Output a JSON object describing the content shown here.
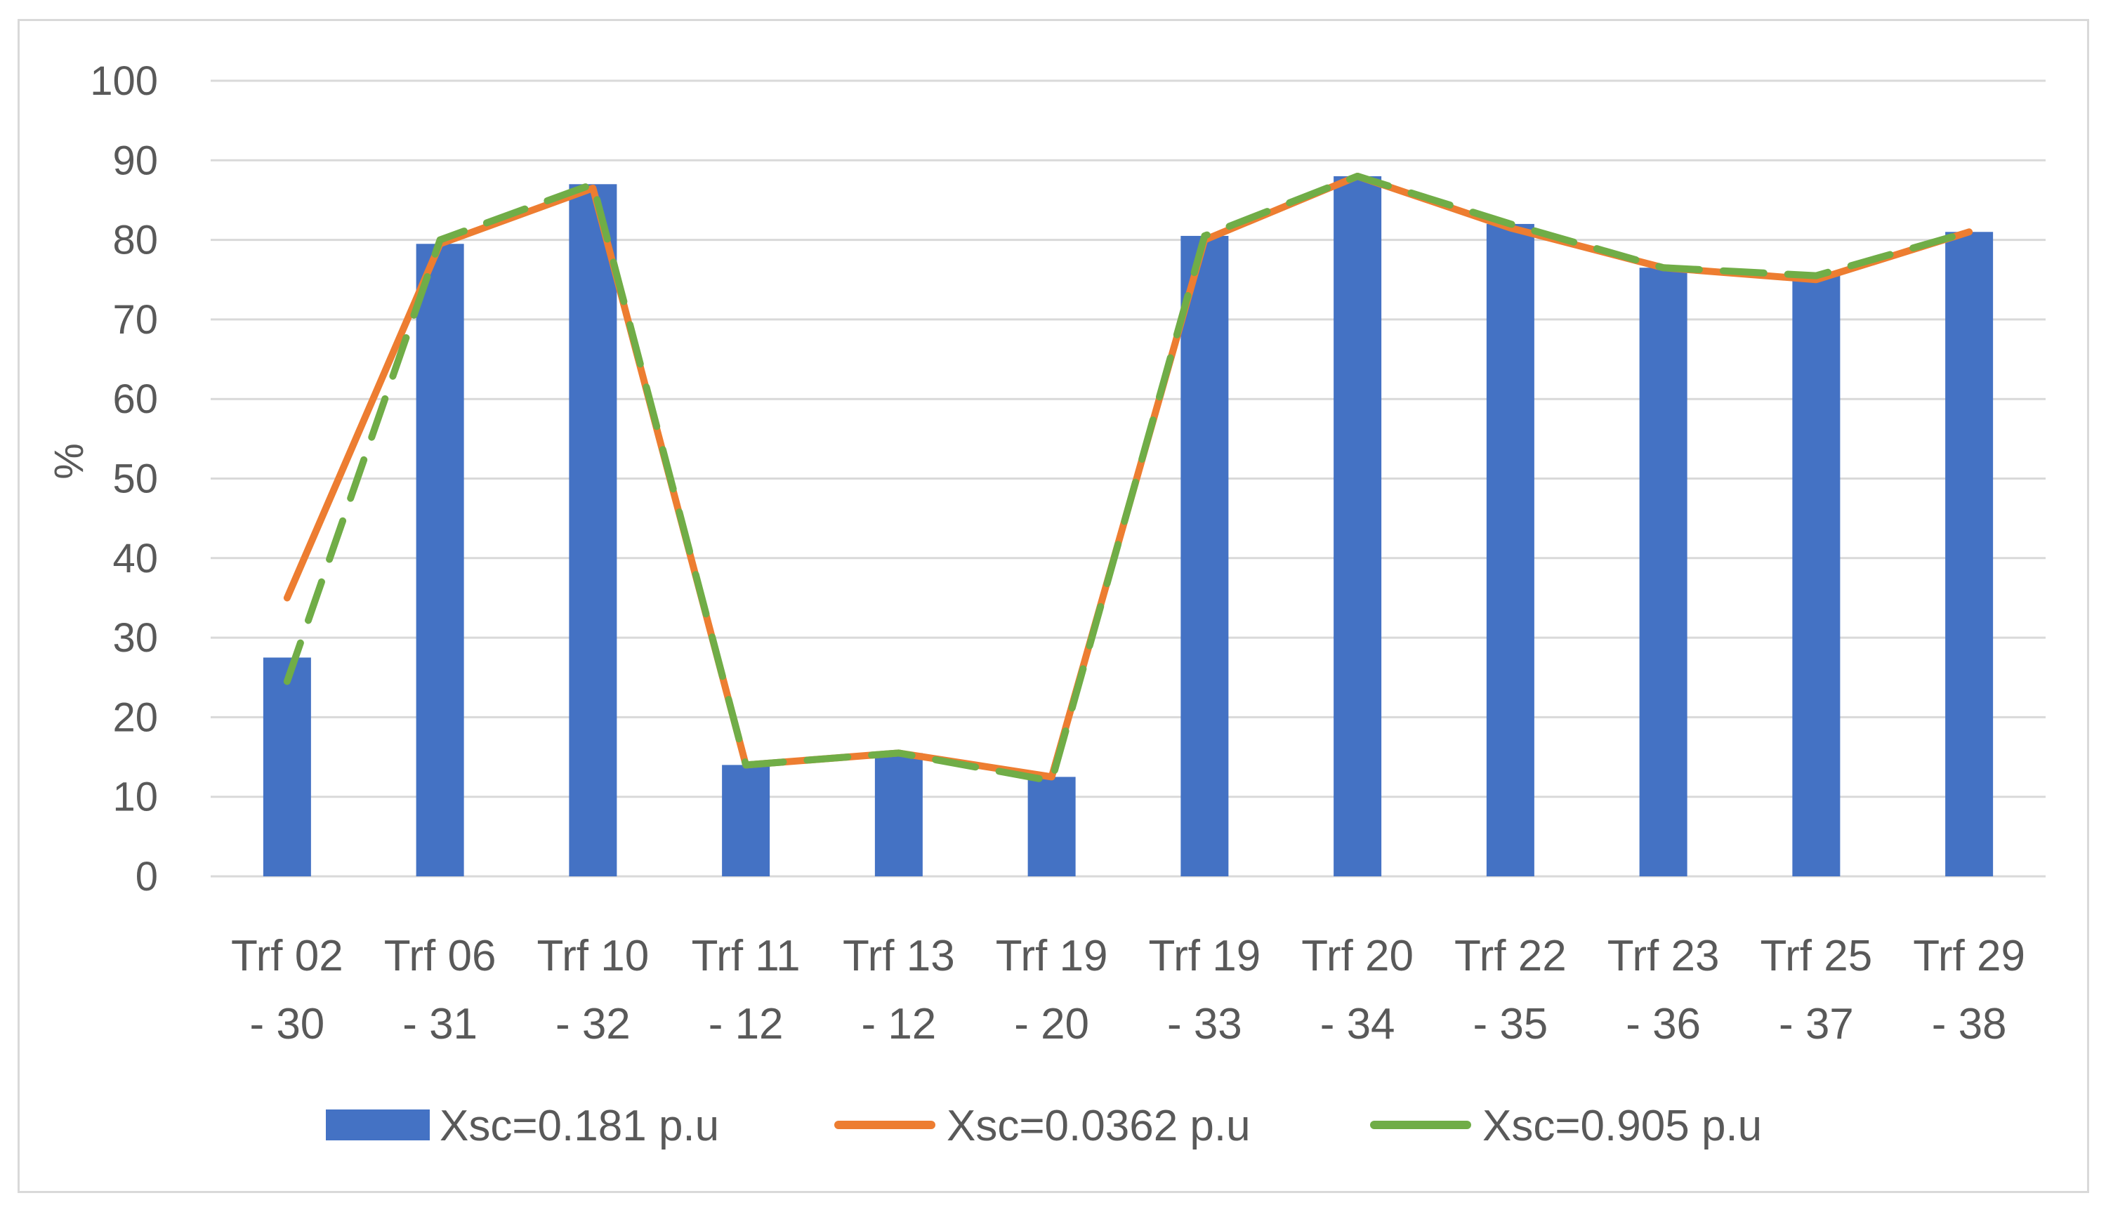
{
  "chart_data": {
    "type": "bar",
    "title": "",
    "xlabel": "",
    "ylabel": "%",
    "ylim": [
      0,
      100
    ],
    "yticks": [
      0,
      10,
      20,
      30,
      40,
      50,
      60,
      70,
      80,
      90,
      100
    ],
    "grid": true,
    "legend_position": "bottom",
    "categories": [
      [
        "Trf 02",
        "- 30"
      ],
      [
        "Trf 06",
        "- 31"
      ],
      [
        "Trf 10",
        "- 32"
      ],
      [
        "Trf 11",
        "- 12"
      ],
      [
        "Trf 13",
        "- 12"
      ],
      [
        "Trf 19",
        "- 20"
      ],
      [
        "Trf 19",
        "- 33"
      ],
      [
        "Trf 20",
        "- 34"
      ],
      [
        "Trf 22",
        "- 35"
      ],
      [
        "Trf 23",
        "- 36"
      ],
      [
        "Trf 25",
        "- 37"
      ],
      [
        "Trf 29",
        "- 38"
      ]
    ],
    "series": [
      {
        "name": "Xsc=0.181 p.u",
        "kind": "bar",
        "color": "#4472c4",
        "values": [
          27.5,
          79.5,
          87,
          14,
          15.5,
          12.5,
          80.5,
          88,
          82,
          76.5,
          75.5,
          81
        ]
      },
      {
        "name": "Xsc=0.0362 p.u",
        "kind": "line",
        "style": "solid",
        "color": "#ed7d31",
        "values": [
          35,
          79.5,
          86.5,
          14,
          15.5,
          12.5,
          80,
          88,
          81.5,
          76.5,
          75,
          81
        ]
      },
      {
        "name": "Xsc=0.905 p.u",
        "kind": "line",
        "style": "dashed",
        "color": "#70ad47",
        "values": [
          24.5,
          80,
          87,
          14,
          15.5,
          12,
          80.5,
          88,
          82,
          76.5,
          75.5,
          81
        ]
      }
    ]
  }
}
